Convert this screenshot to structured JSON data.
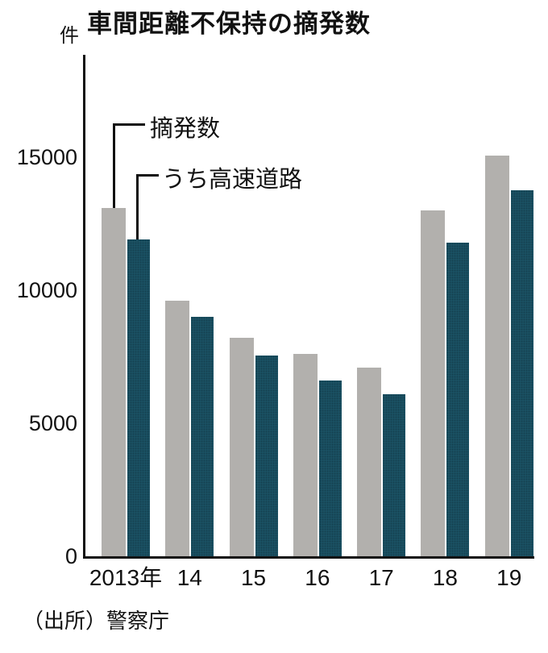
{
  "title": "車間距離不保持の摘発数",
  "unit_label": "件",
  "source": "（出所）警察庁",
  "legend": {
    "total_label": "摘発数",
    "expressway_label": "うち高速道路"
  },
  "chart_data": {
    "type": "bar",
    "title": "車間距離不保持の摘発数",
    "ylabel": "件",
    "xlabel": "",
    "categories": [
      "2013年",
      "14",
      "15",
      "16",
      "17",
      "18",
      "19"
    ],
    "series": [
      {
        "name": "摘発数",
        "color": "#b2b0ad",
        "values": [
          13100,
          9600,
          8200,
          7600,
          7100,
          13000,
          15050
        ]
      },
      {
        "name": "うち高速道路",
        "color": "#1b5366",
        "values": [
          11900,
          9000,
          7550,
          6600,
          6100,
          11800,
          13750
        ]
      }
    ],
    "yticks": [
      0,
      5000,
      10000,
      15000
    ],
    "ylim": [
      0,
      18800
    ],
    "grid": false,
    "legend_position": "annotation-on-first-group"
  }
}
